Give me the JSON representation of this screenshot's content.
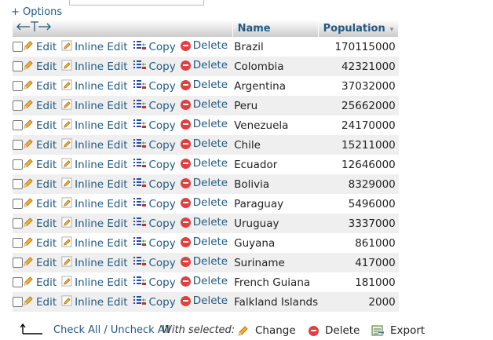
{
  "options_label": "+ Options",
  "header": {
    "name": "Name",
    "population": "Population"
  },
  "row_actions": {
    "edit": "Edit",
    "inline_edit": "Inline Edit",
    "copy": "Copy",
    "delete": "Delete"
  },
  "rows": [
    {
      "name": "Brazil",
      "population": "170115000"
    },
    {
      "name": "Colombia",
      "population": "42321000"
    },
    {
      "name": "Argentina",
      "population": "37032000"
    },
    {
      "name": "Peru",
      "population": "25662000"
    },
    {
      "name": "Venezuela",
      "population": "24170000"
    },
    {
      "name": "Chile",
      "population": "15211000"
    },
    {
      "name": "Ecuador",
      "population": "12646000"
    },
    {
      "name": "Bolivia",
      "population": "8329000"
    },
    {
      "name": "Paraguay",
      "population": "5496000"
    },
    {
      "name": "Uruguay",
      "population": "3337000"
    },
    {
      "name": "Guyana",
      "population": "861000"
    },
    {
      "name": "Suriname",
      "population": "417000"
    },
    {
      "name": "French Guiana",
      "population": "181000"
    },
    {
      "name": "Falkland Islands",
      "population": "2000"
    }
  ],
  "footer": {
    "check_all": "Check All / Uncheck All",
    "with_selected": "With selected:",
    "change": "Change",
    "delete": "Delete",
    "export": "Export"
  },
  "colors": {
    "link": "#235a81",
    "delete_icon": "#e04040",
    "row_alt": "#efefef"
  }
}
